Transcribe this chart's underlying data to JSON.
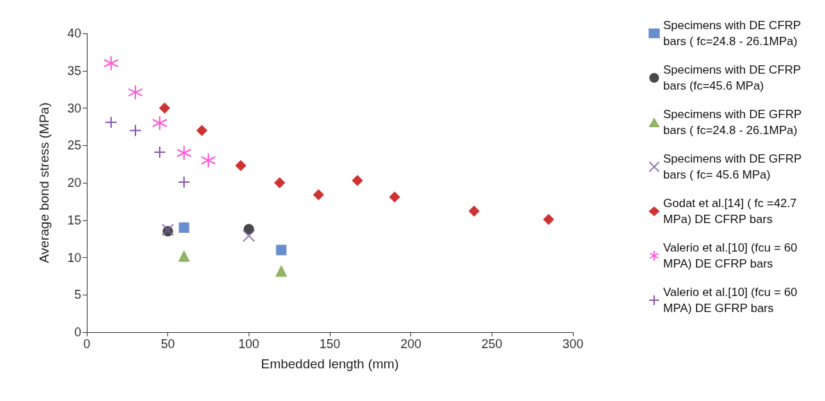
{
  "chart_data": {
    "type": "scatter",
    "xlabel": "Embedded length (mm)",
    "ylabel": "Average bond stress (MPa)",
    "xlim": [
      0,
      300
    ],
    "xticks": [
      0,
      50,
      100,
      150,
      200,
      250,
      300
    ],
    "ylim": [
      0,
      40
    ],
    "yticks": [
      0,
      5,
      10,
      15,
      20,
      25,
      30,
      35,
      40
    ],
    "grid": false,
    "legend": "right",
    "series": [
      {
        "name": "Specimens with DE CFRP bars ( fc=24.8 - 26.1MPa)",
        "color": "#4472c4",
        "marker": "square",
        "x": [
          60,
          120
        ],
        "values": [
          14,
          11
        ]
      },
      {
        "name": "Specimens with DE CFRP bars (fc=45.6 MPa)",
        "color": "#1a1a1a",
        "marker": "circle",
        "x": [
          50,
          100
        ],
        "values": [
          13.5,
          13.8
        ]
      },
      {
        "name": "Specimens with DE GFRP bars ( fc=24.8 - 26.1MPa)",
        "color": "#77a040",
        "marker": "triangle",
        "x": [
          60,
          120
        ],
        "values": [
          10.2,
          8.2
        ]
      },
      {
        "name": "Specimens with DE GFRP bars ( fc= 45.6 MPa)",
        "color": "#7b62a3",
        "marker": "x",
        "x": [
          50,
          100
        ],
        "values": [
          13.7,
          12.9
        ]
      },
      {
        "name": "Godat et al.[14] ( fc =42.7 MPa) DE CFRP bars",
        "color": "#c00000",
        "marker": "diamond",
        "x": [
          48,
          71,
          95,
          119,
          143,
          167,
          190,
          239,
          285
        ],
        "values": [
          30,
          27,
          22.3,
          20,
          18.4,
          20.3,
          18.1,
          16.2,
          15.1
        ]
      },
      {
        "name": "Valerio et al.[10] (fcu = 60 MPA) DE CFRP bars",
        "color": "#ff33cc",
        "x": [
          15,
          30,
          45,
          60,
          75
        ],
        "values": [
          36,
          32.1,
          28,
          24,
          23
        ]
      },
      {
        "name": "Valerio et al.[10] (fcu = 60 MPA) DE GFRP bars",
        "color": "#7030a0",
        "marker": "cross",
        "x": [
          15,
          30,
          45,
          60
        ],
        "values": [
          28.1,
          27,
          24.1,
          20.1
        ]
      }
    ]
  }
}
